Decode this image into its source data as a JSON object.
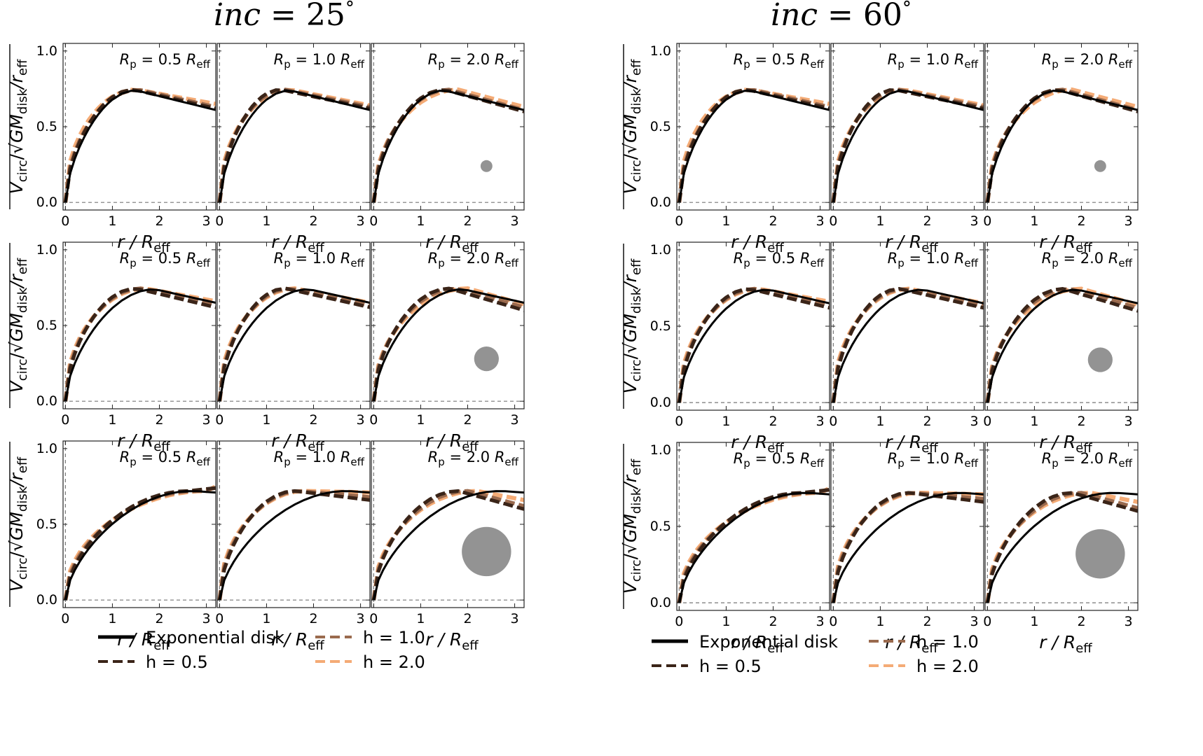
{
  "panels": [
    {
      "title_var": "inc",
      "title_eq": " = ",
      "title_val": "25",
      "title_unit": "°"
    },
    {
      "title_var": "inc",
      "title_eq": " = ",
      "title_val": "60",
      "title_unit": "°"
    }
  ],
  "ylabel": {
    "v": "V",
    "circ": "circ",
    "slash": "/√",
    "gm": "GM",
    "disk": "disk",
    "r": "/r",
    "eff": "eff"
  },
  "xlabel": {
    "r": "r",
    "slash": " / R",
    "eff": "eff"
  },
  "rp_label": {
    "r": "R",
    "p": "p",
    "eq": " = ",
    "unit": " R",
    "eff": "eff"
  },
  "rp_values": [
    "0.5",
    "1.0",
    "2.0"
  ],
  "legend": {
    "exp": "Exponential disk",
    "h05": "h = 0.5",
    "h10": "h = 1.0",
    "h20": "h = 2.0"
  },
  "colors": {
    "exp": "#000000",
    "h05": "#3a2418",
    "h10": "#9a6a4e",
    "h20": "#f4ab76",
    "beam": "#939393",
    "axis": "#222222",
    "ref": "#777777"
  },
  "chart_data": {
    "type": "line",
    "xlabel": "r / R_eff",
    "ylabel": "V_circ / sqrt(GM_disk / r_eff)",
    "xlim": [
      -0.05,
      3.2
    ],
    "ylim": [
      -0.05,
      1.05
    ],
    "xticks": [
      "0",
      "1",
      "2",
      "3"
    ],
    "yticks": [
      "0.0",
      "0.5",
      "1.0"
    ],
    "x": [
      0,
      0.1,
      0.2,
      0.3,
      0.4,
      0.5,
      0.6,
      0.7,
      0.8,
      0.9,
      1.0,
      1.2,
      1.4,
      1.6,
      1.8,
      2.0,
      2.2,
      2.4,
      2.6,
      2.8,
      3.0,
      3.2
    ],
    "series_names": [
      "Exponential disk",
      "h = 0.5",
      "h = 1.0",
      "h = 2.0"
    ],
    "exponential_disk_by_row": [
      {
        "peak_x": 1.5,
        "peak_y": 0.74,
        "end_y": 0.61
      },
      {
        "peak_x": 1.9,
        "peak_y": 0.74,
        "end_y": 0.65
      },
      {
        "peak_x": 2.7,
        "peak_y": 0.72,
        "end_y": 0.71
      }
    ],
    "beam_radius_by_row": [
      0.12,
      0.25,
      0.5
    ],
    "panels": [
      {
        "inclination": "25°",
        "rows": [
          {
            "Rp": [
              "0.5",
              "1.0",
              "2.0"
            ]
          },
          {
            "Rp": [
              "0.5",
              "1.0",
              "2.0"
            ]
          },
          {
            "Rp": [
              "0.5",
              "1.0",
              "2.0"
            ]
          }
        ]
      },
      {
        "inclination": "60°",
        "rows": [
          {
            "Rp": [
              "0.5",
              "1.0",
              "2.0"
            ]
          },
          {
            "Rp": [
              "0.5",
              "1.0",
              "2.0"
            ]
          },
          {
            "Rp": [
              "0.5",
              "1.0",
              "2.0"
            ]
          }
        ]
      }
    ]
  }
}
